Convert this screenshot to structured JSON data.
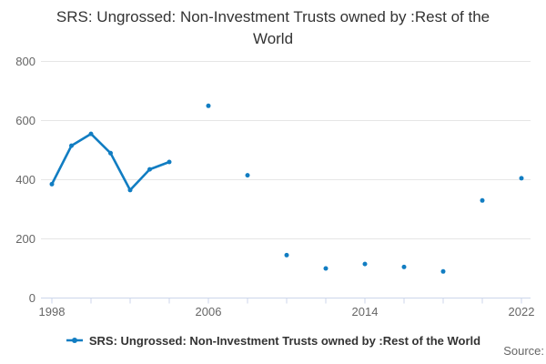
{
  "chart_data": {
    "type": "line",
    "title": "SRS: Ungrossed: Non-Investment Trusts owned by :Rest of the World",
    "xlabel": "",
    "ylabel": "",
    "ylim": [
      0,
      800
    ],
    "yticks": [
      0,
      200,
      400,
      600,
      800
    ],
    "xticks": [
      1998,
      2000,
      2002,
      2004,
      2006,
      2008,
      2010,
      2012,
      2014,
      2016,
      2018,
      2020,
      2022
    ],
    "xtick_labels": [
      "1998",
      "2006",
      "2014",
      "2022"
    ],
    "grid": "horizontal-only",
    "legend_position": "bottom-center",
    "colors": {
      "series": "#117dc2",
      "gridline": "#e6e6e6",
      "axis_line": "#ccd6eb",
      "tick_label": "#666666",
      "title_text": "#333333",
      "legend_text": "#333333",
      "source_text": "#666666"
    },
    "series": [
      {
        "name": "SRS: Ungrossed: Non-Investment Trusts owned by :Rest of the World",
        "color": "#117dc2",
        "note": "points connected only for consecutive years 1998-2004; 2006-2022 are isolated biennial markers",
        "points": [
          [
            1998,
            385
          ],
          [
            1999,
            515
          ],
          [
            2000,
            555
          ],
          [
            2001,
            490
          ],
          [
            2002,
            365
          ],
          [
            2003,
            435
          ],
          [
            2004,
            460
          ],
          [
            2006,
            650
          ],
          [
            2008,
            415
          ],
          [
            2010,
            145
          ],
          [
            2012,
            100
          ],
          [
            2014,
            115
          ],
          [
            2016,
            105
          ],
          [
            2018,
            90
          ],
          [
            2020,
            330
          ],
          [
            2022,
            405
          ]
        ]
      }
    ]
  },
  "footer": {
    "source_label": "Source:"
  }
}
